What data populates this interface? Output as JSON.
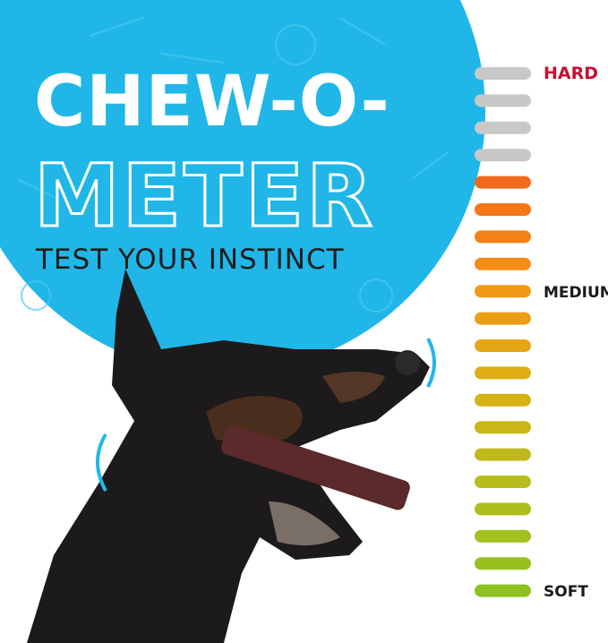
{
  "header": {
    "title_line1": "CHEW-O-",
    "title_line2": "METER",
    "subtitle": "TEST YOUR INSTINCT"
  },
  "meter": {
    "labels": [
      "HARD",
      "MEDIUM",
      "SOFT"
    ]
  }
}
